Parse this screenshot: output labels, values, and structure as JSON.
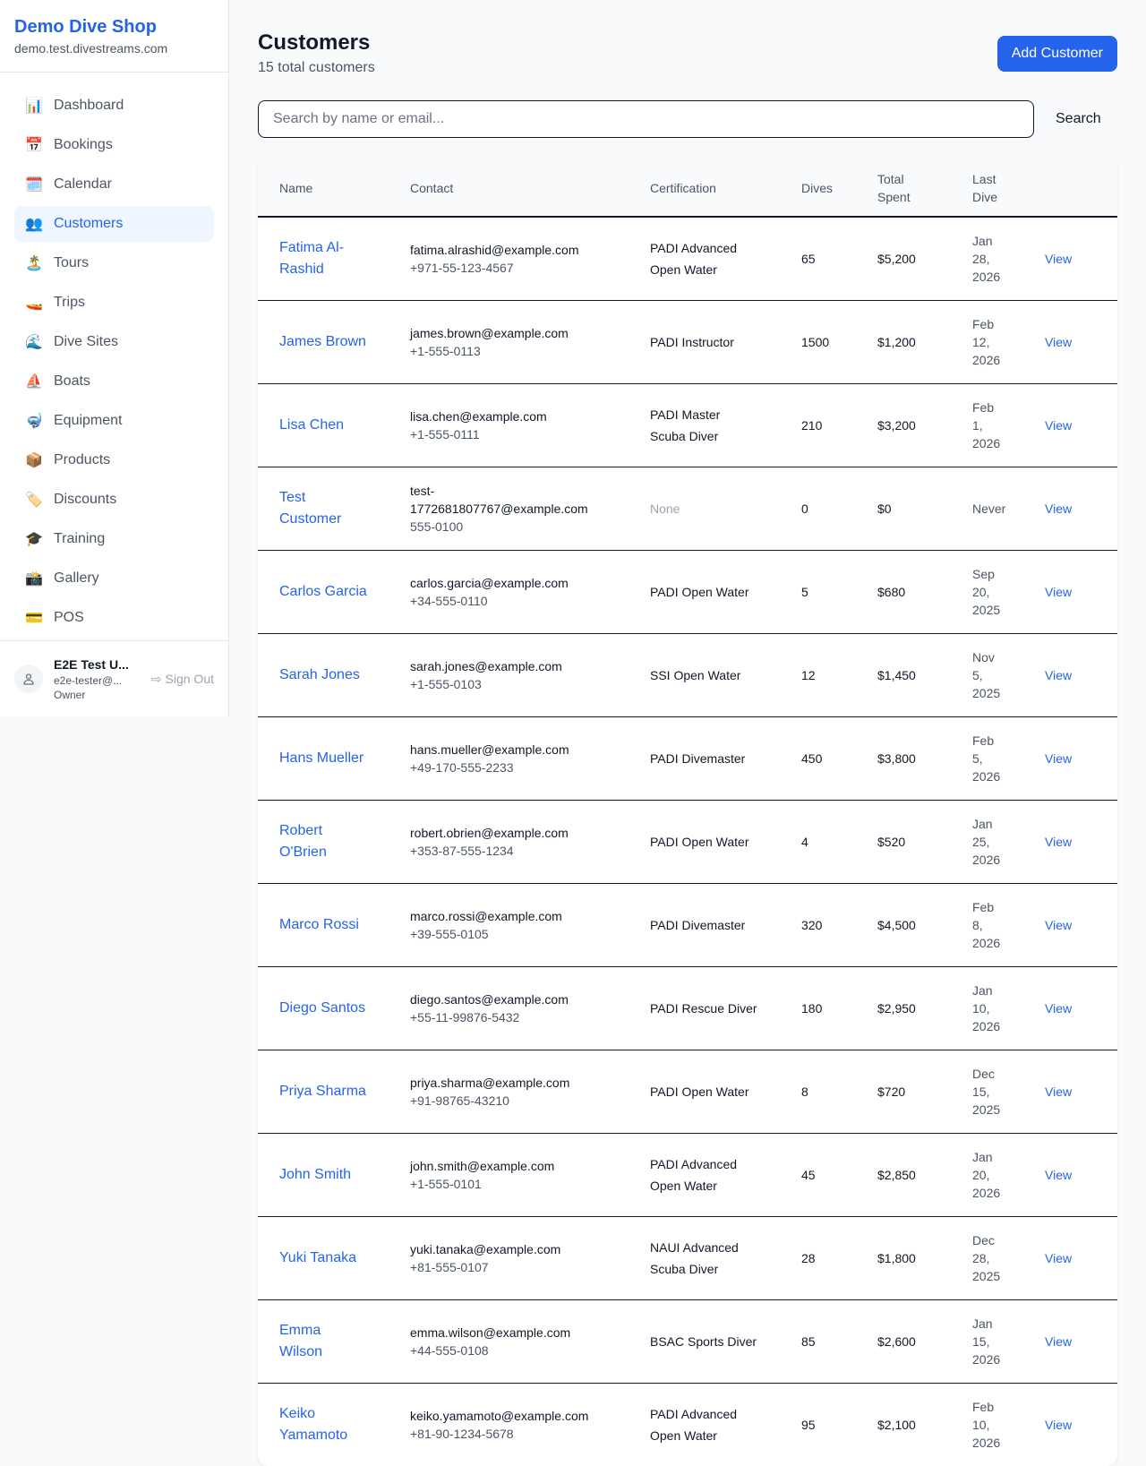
{
  "sidebar": {
    "brand": "Demo Dive Shop",
    "domain": "demo.test.divestreams.com",
    "items": [
      {
        "icon": "📊",
        "label": "Dashboard",
        "name": "bar-chart-icon"
      },
      {
        "icon": "📅",
        "label": "Bookings",
        "name": "calendar-icon"
      },
      {
        "icon": "🗓️",
        "label": "Calendar",
        "name": "spiral-calendar-icon"
      },
      {
        "icon": "👥",
        "label": "Customers",
        "name": "people-icon",
        "active": true
      },
      {
        "icon": "🏝️",
        "label": "Tours",
        "name": "island-icon"
      },
      {
        "icon": "🚤",
        "label": "Trips",
        "name": "speedboat-icon"
      },
      {
        "icon": "🌊",
        "label": "Dive Sites",
        "name": "wave-icon"
      },
      {
        "icon": "⛵",
        "label": "Boats",
        "name": "sailboat-icon"
      },
      {
        "icon": "🤿",
        "label": "Equipment",
        "name": "diving-mask-icon"
      },
      {
        "icon": "📦",
        "label": "Products",
        "name": "package-icon"
      },
      {
        "icon": "🏷️",
        "label": "Discounts",
        "name": "tag-icon"
      },
      {
        "icon": "🎓",
        "label": "Training",
        "name": "graduation-cap-icon"
      },
      {
        "icon": "📸",
        "label": "Gallery",
        "name": "camera-icon"
      },
      {
        "icon": "💳",
        "label": "POS",
        "name": "credit-card-icon"
      }
    ],
    "user": {
      "name": "E2E Test U...",
      "email": "e2e-tester@...",
      "role": "Owner",
      "sign_out": "Sign Out"
    }
  },
  "header": {
    "title": "Customers",
    "subtitle": "15 total customers",
    "add_label": "Add Customer"
  },
  "search": {
    "placeholder": "Search by name or email...",
    "value": "",
    "button": "Search"
  },
  "table": {
    "columns": [
      "Name",
      "Contact",
      "Certification",
      "Dives",
      "Total Spent",
      "Last Dive",
      ""
    ],
    "view_label": "View",
    "rows": [
      {
        "name": "Fatima Al-Rashid",
        "email": "fatima.alrashid@example.com",
        "phone": "+971-55-123-4567",
        "cert": "PADI Advanced Open Water",
        "dives": "65",
        "spent": "$5,200",
        "last": "Jan 28, 2026"
      },
      {
        "name": "James Brown",
        "email": "james.brown@example.com",
        "phone": "+1-555-0113",
        "cert": "PADI Instructor",
        "dives": "1500",
        "spent": "$1,200",
        "last": "Feb 12, 2026"
      },
      {
        "name": "Lisa Chen",
        "email": "lisa.chen@example.com",
        "phone": "+1-555-0111",
        "cert": "PADI Master Scuba Diver",
        "dives": "210",
        "spent": "$3,200",
        "last": "Feb 1, 2026"
      },
      {
        "name": "Test Customer",
        "email": "test-1772681807767@example.com",
        "phone": "555-0100",
        "cert": "None",
        "dives": "0",
        "spent": "$0",
        "last": "Never"
      },
      {
        "name": "Carlos Garcia",
        "email": "carlos.garcia@example.com",
        "phone": "+34-555-0110",
        "cert": "PADI Open Water",
        "dives": "5",
        "spent": "$680",
        "last": "Sep 20, 2025"
      },
      {
        "name": "Sarah Jones",
        "email": "sarah.jones@example.com",
        "phone": "+1-555-0103",
        "cert": "SSI Open Water",
        "dives": "12",
        "spent": "$1,450",
        "last": "Nov 5, 2025"
      },
      {
        "name": "Hans Mueller",
        "email": "hans.mueller@example.com",
        "phone": "+49-170-555-2233",
        "cert": "PADI Divemaster",
        "dives": "450",
        "spent": "$3,800",
        "last": "Feb 5, 2026"
      },
      {
        "name": "Robert O'Brien",
        "email": "robert.obrien@example.com",
        "phone": "+353-87-555-1234",
        "cert": "PADI Open Water",
        "dives": "4",
        "spent": "$520",
        "last": "Jan 25, 2026"
      },
      {
        "name": "Marco Rossi",
        "email": "marco.rossi@example.com",
        "phone": "+39-555-0105",
        "cert": "PADI Divemaster",
        "dives": "320",
        "spent": "$4,500",
        "last": "Feb 8, 2026"
      },
      {
        "name": "Diego Santos",
        "email": "diego.santos@example.com",
        "phone": "+55-11-99876-5432",
        "cert": "PADI Rescue Diver",
        "dives": "180",
        "spent": "$2,950",
        "last": "Jan 10, 2026"
      },
      {
        "name": "Priya Sharma",
        "email": "priya.sharma@example.com",
        "phone": "+91-98765-43210",
        "cert": "PADI Open Water",
        "dives": "8",
        "spent": "$720",
        "last": "Dec 15, 2025"
      },
      {
        "name": "John Smith",
        "email": "john.smith@example.com",
        "phone": "+1-555-0101",
        "cert": "PADI Advanced Open Water",
        "dives": "45",
        "spent": "$2,850",
        "last": "Jan 20, 2026"
      },
      {
        "name": "Yuki Tanaka",
        "email": "yuki.tanaka@example.com",
        "phone": "+81-555-0107",
        "cert": "NAUI Advanced Scuba Diver",
        "dives": "28",
        "spent": "$1,800",
        "last": "Dec 28, 2025"
      },
      {
        "name": "Emma Wilson",
        "email": "emma.wilson@example.com",
        "phone": "+44-555-0108",
        "cert": "BSAC Sports Diver",
        "dives": "85",
        "spent": "$2,600",
        "last": "Jan 15, 2026"
      },
      {
        "name": "Keiko Yamamoto",
        "email": "keiko.yamamoto@example.com",
        "phone": "+81-90-1234-5678",
        "cert": "PADI Advanced Open Water",
        "dives": "95",
        "spent": "$2,100",
        "last": "Feb 10, 2026"
      }
    ]
  }
}
